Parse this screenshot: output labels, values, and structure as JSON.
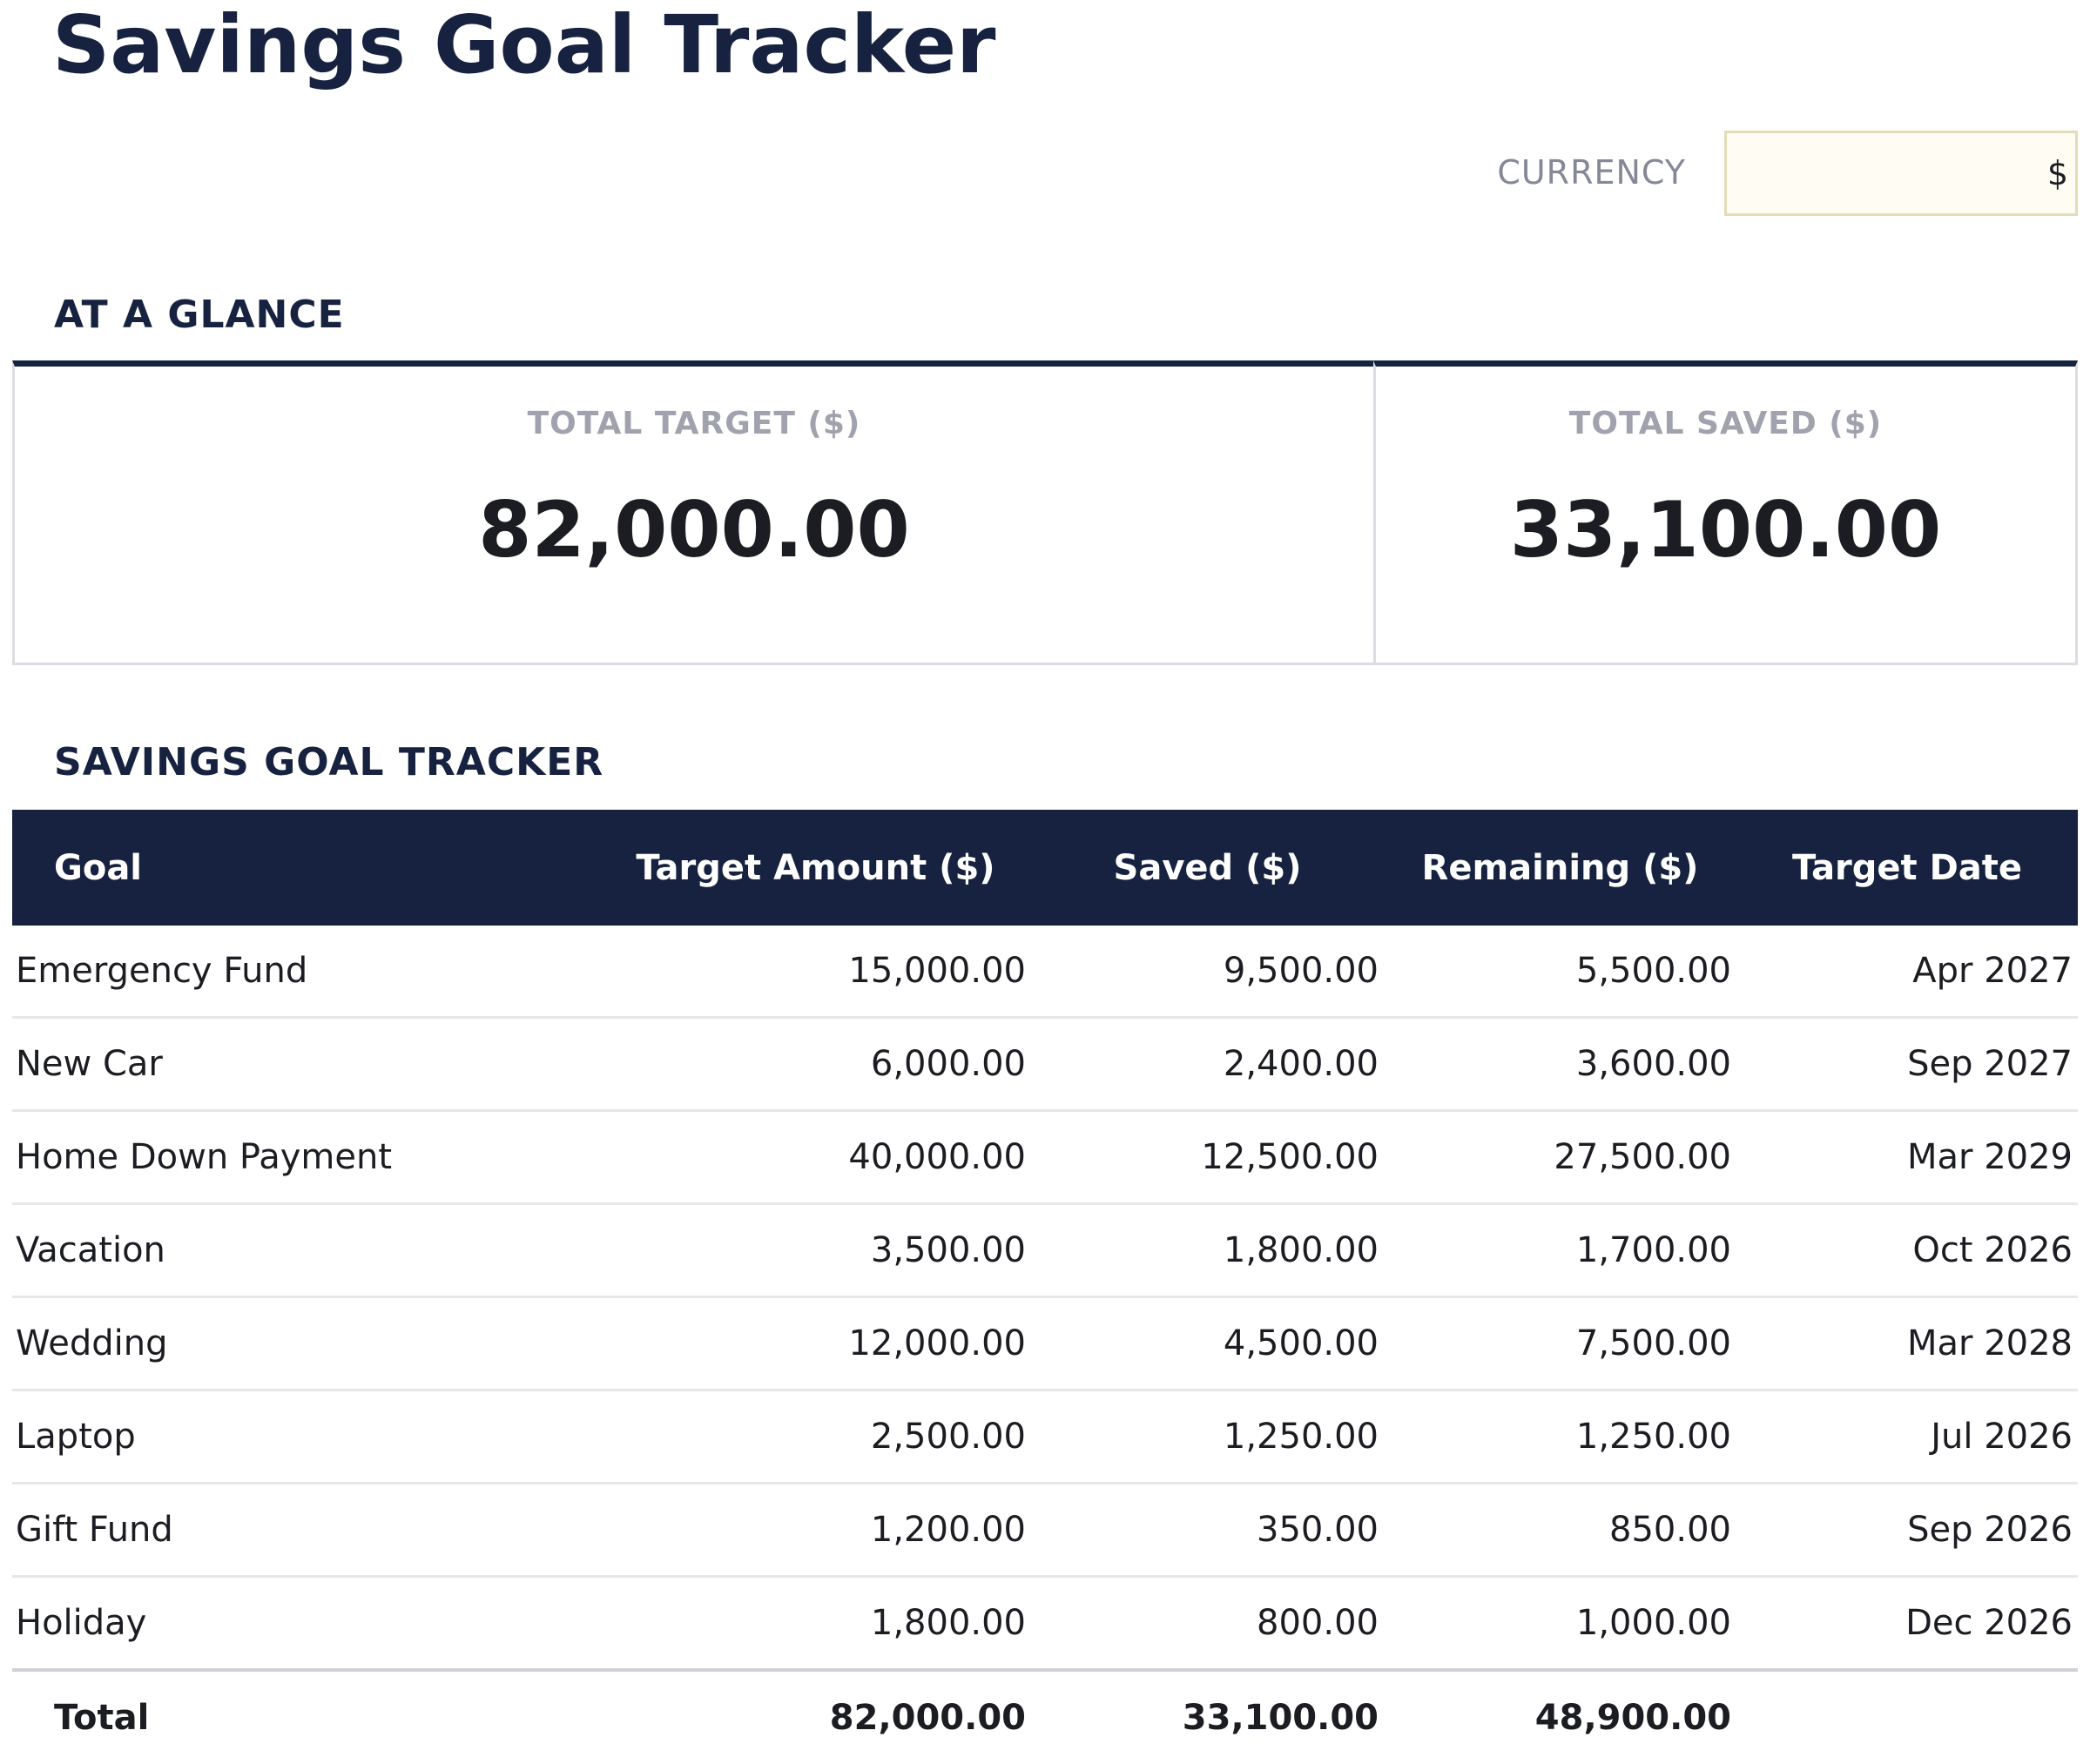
{
  "title": "Savings Goal Tracker",
  "currency": {
    "label": "CURRENCY",
    "value": "$"
  },
  "at_a_glance": {
    "heading": "AT A GLANCE",
    "cards": [
      {
        "label": "TOTAL TARGET ($)",
        "value": "82,000.00"
      },
      {
        "label": "TOTAL SAVED ($)",
        "value": "33,100.00"
      }
    ]
  },
  "tracker": {
    "heading": "SAVINGS GOAL TRACKER",
    "columns": [
      "Goal",
      "Target Amount ($)",
      "Saved ($)",
      "Remaining ($)",
      "Target Date"
    ],
    "rows": [
      {
        "goal": "Emergency Fund",
        "target": "15,000.00",
        "saved": "9,500.00",
        "remaining": "5,500.00",
        "date": "Apr 2027"
      },
      {
        "goal": "New Car",
        "target": "6,000.00",
        "saved": "2,400.00",
        "remaining": "3,600.00",
        "date": "Sep 2027"
      },
      {
        "goal": "Home Down Payment",
        "target": "40,000.00",
        "saved": "12,500.00",
        "remaining": "27,500.00",
        "date": "Mar 2029"
      },
      {
        "goal": "Vacation",
        "target": "3,500.00",
        "saved": "1,800.00",
        "remaining": "1,700.00",
        "date": "Oct 2026"
      },
      {
        "goal": "Wedding",
        "target": "12,000.00",
        "saved": "4,500.00",
        "remaining": "7,500.00",
        "date": "Mar 2028"
      },
      {
        "goal": "Laptop",
        "target": "2,500.00",
        "saved": "1,250.00",
        "remaining": "1,250.00",
        "date": "Jul 2026"
      },
      {
        "goal": "Gift Fund",
        "target": "1,200.00",
        "saved": "350.00",
        "remaining": "850.00",
        "date": "Sep 2026"
      },
      {
        "goal": "Holiday",
        "target": "1,800.00",
        "saved": "800.00",
        "remaining": "1,000.00",
        "date": "Dec 2026"
      }
    ],
    "total": {
      "label": "Total",
      "target": "82,000.00",
      "saved": "33,100.00",
      "remaining": "48,900.00",
      "date": ""
    }
  },
  "colors": {
    "navy": "#16223f",
    "text": "#1c1d22",
    "muted": "#858896",
    "card_label": "#a0a3ae",
    "input_bg": "#fffdf3",
    "input_border": "#e3dcb8",
    "row_divider": "#e6e7ea"
  }
}
